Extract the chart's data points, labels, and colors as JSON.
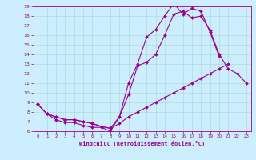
{
  "title": "",
  "xlabel": "Windchill (Refroidissement éolien,°C)",
  "ylabel": "",
  "background_color": "#cceeff",
  "line_color": "#990099",
  "xmin": 0,
  "xmax": 23,
  "ymin": 6,
  "ymax": 19,
  "series": [
    {
      "x": [
        0,
        1,
        2,
        3,
        4,
        5,
        6,
        7,
        8,
        9,
        10,
        11,
        12,
        13,
        14,
        15,
        16,
        17,
        18,
        19,
        20
      ],
      "y": [
        8.8,
        7.8,
        7.2,
        6.9,
        6.9,
        6.6,
        6.4,
        6.4,
        6.0,
        7.5,
        11.0,
        13.0,
        15.8,
        16.6,
        18.0,
        19.3,
        18.2,
        18.8,
        18.5,
        16.3,
        13.8
      ]
    },
    {
      "x": [
        0,
        1,
        2,
        3,
        4,
        5,
        6,
        7,
        8,
        9,
        10,
        11,
        12,
        13,
        14,
        15,
        16,
        17,
        18,
        19,
        20,
        21,
        22,
        23
      ],
      "y": [
        8.8,
        7.8,
        7.5,
        7.2,
        7.2,
        7.0,
        6.8,
        6.5,
        6.3,
        7.5,
        9.8,
        12.8,
        13.2,
        14.0,
        16.0,
        18.2,
        18.5,
        17.8,
        18.0,
        16.5,
        14.0,
        12.5,
        12.0,
        11.0
      ]
    },
    {
      "x": [
        0,
        1,
        2,
        3,
        4,
        5,
        6,
        7,
        8,
        9,
        10,
        11,
        12,
        13,
        14,
        15,
        16,
        17,
        18,
        19,
        20,
        21,
        22,
        23
      ],
      "y": [
        8.8,
        7.8,
        7.5,
        7.2,
        7.2,
        7.0,
        6.8,
        6.5,
        6.3,
        6.8,
        7.5,
        8.0,
        8.5,
        9.0,
        9.5,
        10.0,
        10.5,
        11.0,
        11.5,
        12.0,
        12.5,
        13.0,
        null,
        null
      ]
    }
  ]
}
